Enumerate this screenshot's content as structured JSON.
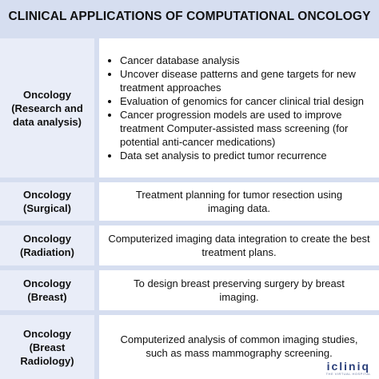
{
  "title": "CLINICAL APPLICATIONS OF COMPUTATIONAL ONCOLOGY",
  "rows": [
    {
      "label": [
        "Oncology",
        "(Research and",
        "data analysis)"
      ],
      "items": [
        "Cancer database analysis",
        "Uncover disease patterns and gene targets for new treatment approaches",
        "Evaluation of genomics for cancer clinical trial design",
        "Cancer progression models are used to improve treatment Computer-assisted mass screening (for potential anti-cancer medications)",
        "Data set analysis to predict tumor recurrence"
      ]
    },
    {
      "label": [
        "Oncology",
        "(Surgical)"
      ],
      "text": "Treatment planning for tumor resection using imaging data."
    },
    {
      "label": [
        "Oncology",
        "(Radiation)"
      ],
      "text": "Computerized imaging data integration to create the best treatment plans."
    },
    {
      "label": [
        "Oncology",
        "(Breast)"
      ],
      "text": "To design breast preserving surgery by breast imaging."
    },
    {
      "label": [
        "Oncology",
        "(Breast",
        "Radiology)"
      ],
      "text": "Computerized analysis of common imaging studies, such as mass mammography screening."
    }
  ],
  "logo": {
    "word": "icliniq",
    "tagline": "THE VIRTUAL HOSPITAL",
    "color": "#2a3f7a"
  }
}
